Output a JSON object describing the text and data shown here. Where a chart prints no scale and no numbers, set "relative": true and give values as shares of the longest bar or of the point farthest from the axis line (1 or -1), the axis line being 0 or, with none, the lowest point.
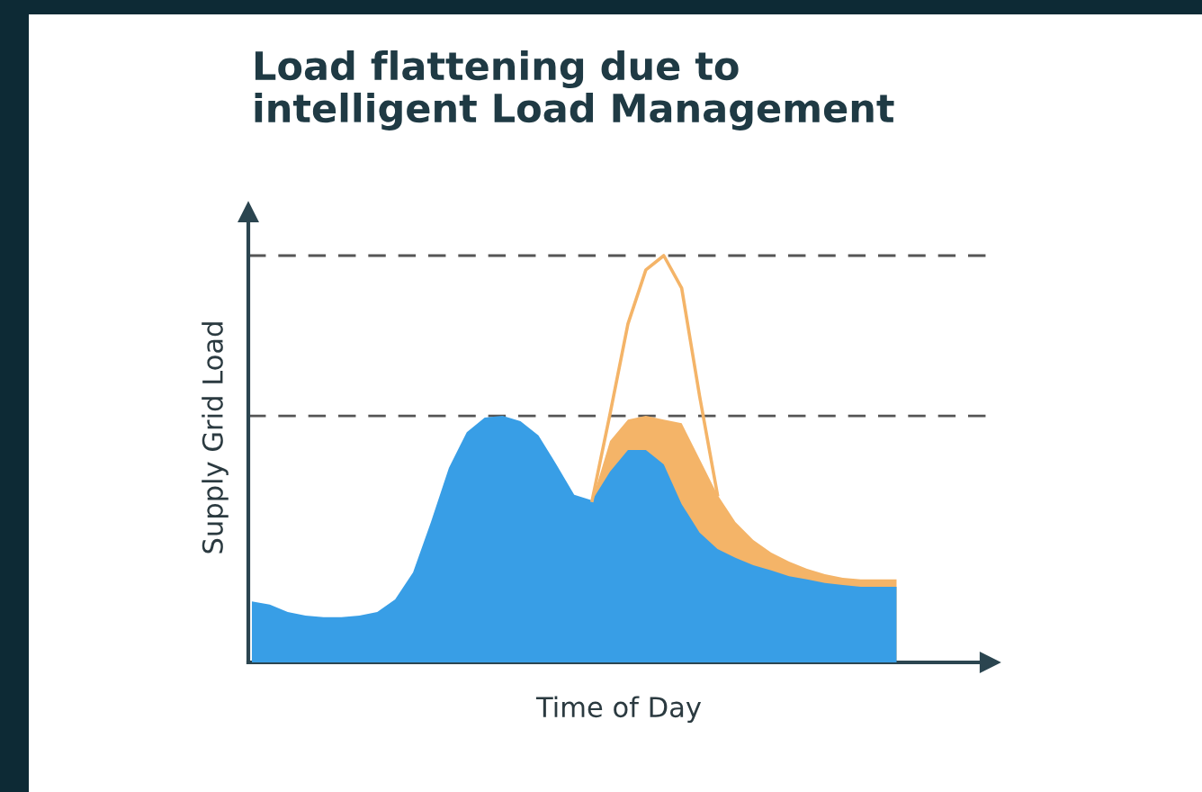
{
  "chart_data": {
    "type": "area",
    "title": "Load flattening due to\nintelligent Load Management",
    "xlabel": "Time of Day",
    "ylabel": "Supply Grid Load",
    "relative": true,
    "categories": [
      null,
      null,
      null,
      null,
      null,
      null,
      null,
      null,
      null,
      null,
      null,
      null,
      null,
      null,
      null,
      null,
      null,
      null,
      null,
      null,
      null,
      null,
      null,
      null,
      null,
      null,
      null,
      null,
      null,
      null,
      null,
      null,
      null,
      null,
      null,
      null,
      null
    ],
    "series": [
      {
        "type": "area",
        "color": "#f4b468",
        "values": [
          null,
          null,
          null,
          null,
          null,
          null,
          null,
          null,
          null,
          null,
          null,
          null,
          null,
          null,
          null,
          null,
          null,
          null,
          null,
          0.398,
          0.544,
          0.597,
          0.606,
          0.597,
          0.588,
          0.5,
          0.412,
          0.345,
          0.301,
          0.27,
          0.248,
          0.23,
          0.217,
          0.208,
          0.204,
          0.204,
          0.204
        ]
      },
      {
        "color": "#389ee6",
        "values": [
          0.15,
          0.142,
          0.124,
          0.115,
          0.111,
          0.111,
          0.115,
          0.124,
          0.155,
          0.221,
          0.345,
          0.478,
          0.566,
          0.602,
          0.606,
          0.593,
          0.558,
          0.487,
          0.412,
          0.398,
          0.469,
          0.522,
          0.522,
          0.487,
          0.389,
          0.319,
          0.279,
          0.257,
          0.239,
          0.226,
          0.212,
          0.204,
          0.195,
          0.19,
          0.186,
          0.186,
          0.186
        ]
      },
      {
        "type": "line",
        "color": "#f4b468",
        "values": [
          null,
          null,
          null,
          null,
          null,
          null,
          null,
          null,
          null,
          null,
          null,
          null,
          null,
          null,
          null,
          null,
          null,
          null,
          null,
          0.398,
          0.611,
          0.832,
          0.965,
          1.0,
          0.92,
          0.655,
          0.412,
          null,
          null,
          null,
          null,
          null,
          null,
          null,
          null,
          null,
          null
        ]
      }
    ],
    "ref_lines": [
      {
        "axis": "y",
        "value": 1.0,
        "color": "#555555",
        "line_style": "dashed"
      },
      {
        "axis": "y",
        "value": 0.606,
        "color": "#555555",
        "line_style": "dashed"
      }
    ],
    "grid": false,
    "legend": false
  }
}
